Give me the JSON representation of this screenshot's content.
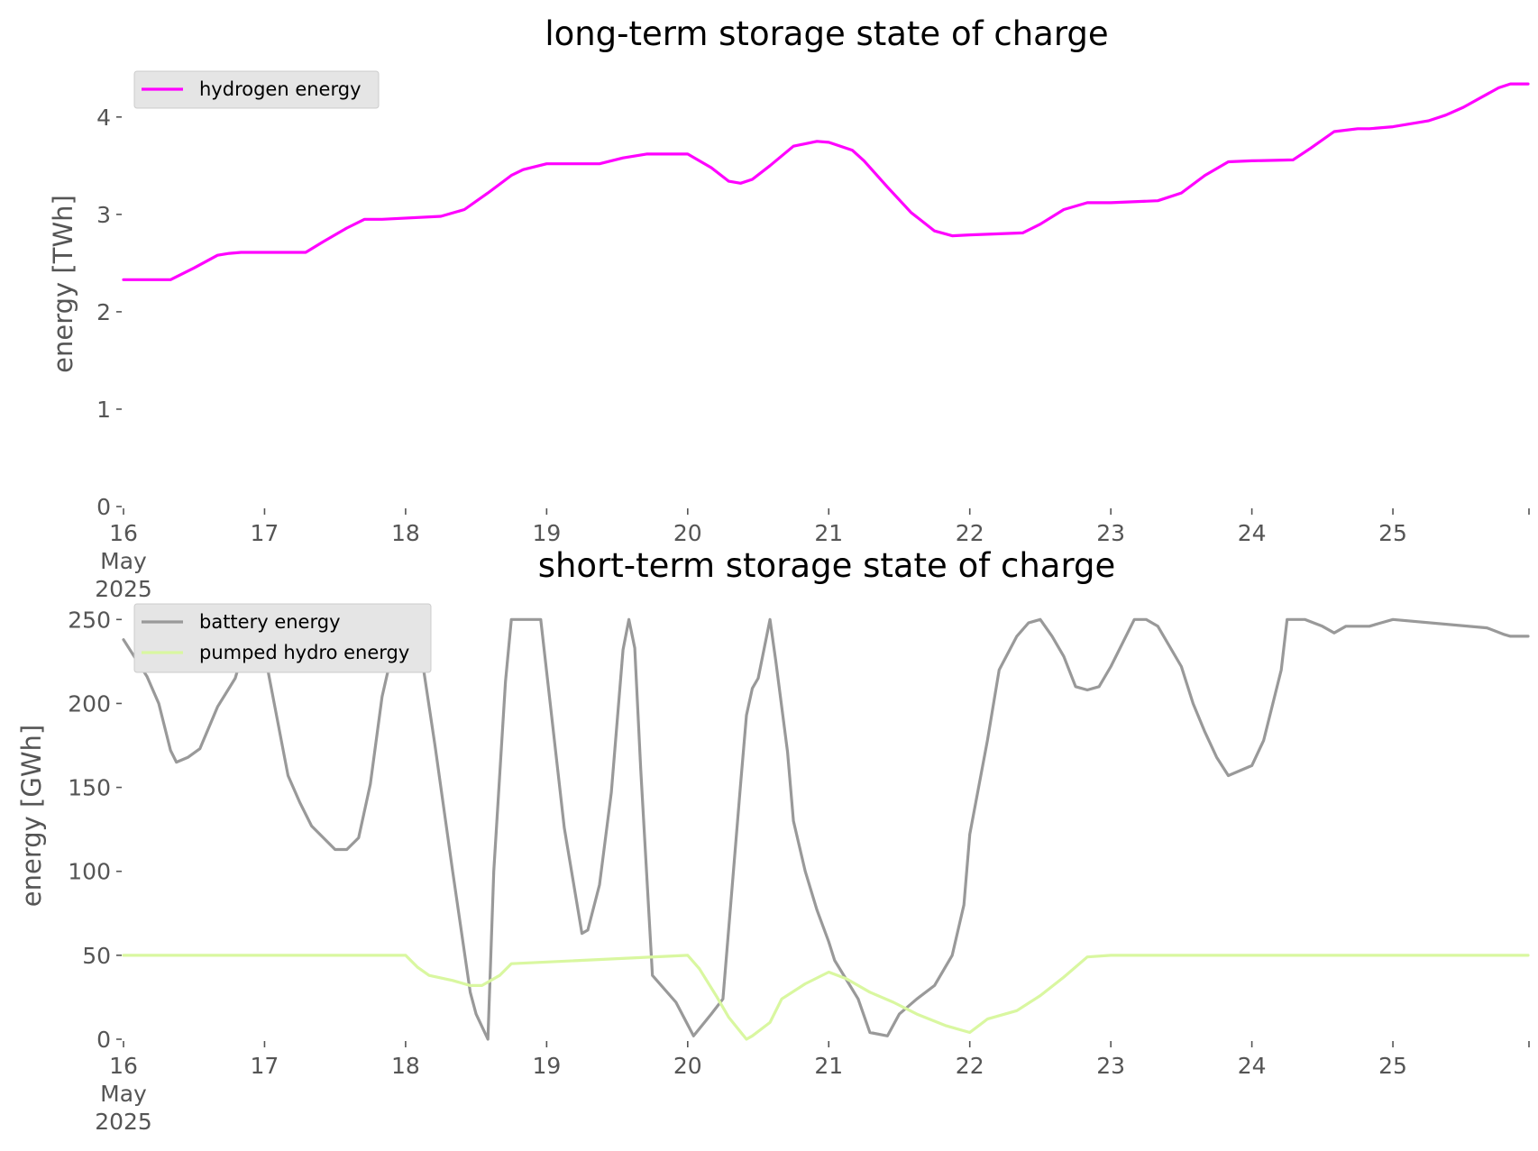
{
  "colors": {
    "hydrogen": "#ff00ff",
    "battery": "#999999",
    "pumped_hydro": "#d9f7a0",
    "axis_text": "#555555"
  },
  "chart_data": [
    {
      "type": "line",
      "title": "long-term storage state of charge",
      "xlabel": "",
      "ylabel": "energy [TWh]",
      "ylim": [
        0,
        4.35
      ],
      "xlim": [
        "2025-05-16 00:00",
        "2025-05-25 23:00"
      ],
      "x_ticks": [
        "16\nMay\n2025",
        "17",
        "18",
        "19",
        "20",
        "21",
        "22",
        "23",
        "24",
        "25"
      ],
      "y_ticks": [
        "0",
        "1",
        "2",
        "3",
        "4"
      ],
      "grid": false,
      "legend": "upper-left",
      "series": [
        {
          "name": "hydrogen energy",
          "color": "#ff00ff",
          "x": [
            "2025-05-16 00:00",
            "2025-05-16 08:00",
            "2025-05-16 12:00",
            "2025-05-16 16:00",
            "2025-05-16 18:00",
            "2025-05-16 20:00",
            "2025-05-17 07:00",
            "2025-05-17 10:00",
            "2025-05-17 14:00",
            "2025-05-17 17:00",
            "2025-05-17 20:00",
            "2025-05-18 06:00",
            "2025-05-18 10:00",
            "2025-05-18 14:00",
            "2025-05-18 18:00",
            "2025-05-18 20:00",
            "2025-05-19 00:00",
            "2025-05-19 09:00",
            "2025-05-19 13:00",
            "2025-05-19 17:00",
            "2025-05-20 00:00",
            "2025-05-20 04:00",
            "2025-05-20 07:00",
            "2025-05-20 09:00",
            "2025-05-20 11:00",
            "2025-05-20 14:00",
            "2025-05-20 18:00",
            "2025-05-20 22:00",
            "2025-05-21 00:00",
            "2025-05-21 04:00",
            "2025-05-21 06:00",
            "2025-05-21 10:00",
            "2025-05-21 14:00",
            "2025-05-21 18:00",
            "2025-05-21 21:00",
            "2025-05-22 00:00",
            "2025-05-22 09:00",
            "2025-05-22 12:00",
            "2025-05-22 16:00",
            "2025-05-22 20:00",
            "2025-05-23 00:00",
            "2025-05-23 08:00",
            "2025-05-23 12:00",
            "2025-05-23 16:00",
            "2025-05-23 20:00",
            "2025-05-24 00:00",
            "2025-05-24 07:00",
            "2025-05-24 10:00",
            "2025-05-24 14:00",
            "2025-05-24 18:00",
            "2025-05-24 20:00",
            "2025-05-25 00:00",
            "2025-05-25 06:00",
            "2025-05-25 09:00",
            "2025-05-25 12:00",
            "2025-05-25 15:00",
            "2025-05-25 18:00",
            "2025-05-25 20:00",
            "2025-05-25 23:00"
          ],
          "y": [
            2.33,
            2.33,
            2.45,
            2.58,
            2.6,
            2.61,
            2.61,
            2.72,
            2.86,
            2.95,
            2.95,
            2.98,
            3.05,
            3.22,
            3.4,
            3.46,
            3.52,
            3.52,
            3.58,
            3.62,
            3.62,
            3.48,
            3.34,
            3.32,
            3.36,
            3.5,
            3.7,
            3.75,
            3.74,
            3.66,
            3.55,
            3.28,
            3.02,
            2.83,
            2.78,
            2.79,
            2.81,
            2.9,
            3.05,
            3.12,
            3.12,
            3.14,
            3.22,
            3.4,
            3.54,
            3.55,
            3.56,
            3.68,
            3.85,
            3.88,
            3.88,
            3.9,
            3.96,
            4.02,
            4.1,
            4.2,
            4.3,
            4.34,
            4.34
          ]
        }
      ]
    },
    {
      "type": "line",
      "title": "short-term storage state of charge",
      "xlabel": "",
      "ylabel": "energy [GWh]",
      "ylim": [
        0,
        255
      ],
      "xlim": [
        "2025-05-16 00:00",
        "2025-05-25 23:00"
      ],
      "x_ticks": [
        "16\nMay\n2025",
        "17",
        "18",
        "19",
        "20",
        "21",
        "22",
        "23",
        "24",
        "25"
      ],
      "y_ticks": [
        "0",
        "50",
        "100",
        "150",
        "200",
        "250"
      ],
      "grid": false,
      "legend": "upper-left",
      "series": [
        {
          "name": "battery energy",
          "color": "#999999",
          "x": [
            "2025-05-16 00:00",
            "2025-05-16 04:00",
            "2025-05-16 06:00",
            "2025-05-16 08:00",
            "2025-05-16 09:00",
            "2025-05-16 11:00",
            "2025-05-16 13:00",
            "2025-05-16 16:00",
            "2025-05-16 19:00",
            "2025-05-16 22:00",
            "2025-05-17 00:00",
            "2025-05-17 04:00",
            "2025-05-17 06:00",
            "2025-05-17 08:00",
            "2025-05-17 12:00",
            "2025-05-17 14:00",
            "2025-05-17 16:00",
            "2025-05-17 18:00",
            "2025-05-17 20:00",
            "2025-05-17 23:00",
            "2025-05-18 02:00",
            "2025-05-18 05:00",
            "2025-05-18 08:00",
            "2025-05-18 10:00",
            "2025-05-18 11:00",
            "2025-05-18 12:00",
            "2025-05-18 14:00",
            "2025-05-18 15:00",
            "2025-05-18 17:00",
            "2025-05-18 18:00",
            "2025-05-18 23:00",
            "2025-05-19 03:00",
            "2025-05-19 06:00",
            "2025-05-19 07:00",
            "2025-05-19 09:00",
            "2025-05-19 11:00",
            "2025-05-19 13:00",
            "2025-05-19 14:00",
            "2025-05-19 15:00",
            "2025-05-19 16:00",
            "2025-05-19 18:00",
            "2025-05-19 22:00",
            "2025-05-20 01:00",
            "2025-05-20 04:00",
            "2025-05-20 06:00",
            "2025-05-20 09:00",
            "2025-05-20 10:00",
            "2025-05-20 11:00",
            "2025-05-20 12:00",
            "2025-05-20 14:00",
            "2025-05-20 15:00",
            "2025-05-20 17:00",
            "2025-05-20 18:00",
            "2025-05-20 20:00",
            "2025-05-20 22:00",
            "2025-05-21 00:00",
            "2025-05-21 01:00",
            "2025-05-21 05:00",
            "2025-05-21 07:00",
            "2025-05-21 10:00",
            "2025-05-21 12:00",
            "2025-05-21 15:00",
            "2025-05-21 18:00",
            "2025-05-21 21:00",
            "2025-05-21 23:00",
            "2025-05-22 00:00",
            "2025-05-22 03:00",
            "2025-05-22 05:00",
            "2025-05-22 08:00",
            "2025-05-22 10:00",
            "2025-05-22 12:00",
            "2025-05-22 14:00",
            "2025-05-22 16:00",
            "2025-05-22 18:00",
            "2025-05-22 20:00",
            "2025-05-22 22:00",
            "2025-05-23 00:00",
            "2025-05-23 04:00",
            "2025-05-23 06:00",
            "2025-05-23 08:00",
            "2025-05-23 12:00",
            "2025-05-23 14:00",
            "2025-05-23 16:00",
            "2025-05-23 18:00",
            "2025-05-23 20:00",
            "2025-05-24 00:00",
            "2025-05-24 02:00",
            "2025-05-24 05:00",
            "2025-05-24 06:00",
            "2025-05-24 09:00",
            "2025-05-24 12:00",
            "2025-05-24 14:00",
            "2025-05-24 16:00",
            "2025-05-24 18:00",
            "2025-05-24 20:00",
            "2025-05-24 22:00",
            "2025-05-25 00:00",
            "2025-05-25 16:00",
            "2025-05-25 19:00",
            "2025-05-25 20:00",
            "2025-05-25 22:00",
            "2025-05-25 23:00"
          ],
          "y": [
            238,
            216,
            200,
            172,
            165,
            168,
            173,
            198,
            215,
            250,
            230,
            157,
            141,
            127,
            113,
            113,
            120,
            152,
            204,
            250,
            245,
            175,
            100,
            52,
            28,
            15,
            0,
            100,
            213,
            250,
            250,
            126,
            63,
            65,
            92,
            147,
            232,
            250,
            233,
            161,
            38,
            22,
            2,
            15,
            24,
            152,
            193,
            209,
            215,
            250,
            225,
            171,
            130,
            100,
            77,
            58,
            47,
            24,
            4,
            2,
            15,
            24,
            32,
            50,
            80,
            122,
            178,
            220,
            240,
            248,
            250,
            240,
            228,
            210,
            208,
            210,
            222,
            250,
            250,
            246,
            222,
            200,
            183,
            168,
            157,
            163,
            178,
            220,
            250,
            250,
            246,
            242,
            246,
            246,
            246,
            248,
            250,
            245,
            241,
            240,
            240,
            240
          ],
          "x_ref_note": ""
        },
        {
          "name": "pumped hydro energy",
          "color": "#d9f7a0",
          "x": [
            "2025-05-16 00:00",
            "2025-05-18 00:00",
            "2025-05-18 02:00",
            "2025-05-18 04:00",
            "2025-05-18 08:00",
            "2025-05-18 11:00",
            "2025-05-18 13:00",
            "2025-05-18 16:00",
            "2025-05-18 18:00",
            "2025-05-20 00:00",
            "2025-05-20 02:00",
            "2025-05-20 05:00",
            "2025-05-20 07:00",
            "2025-05-20 10:00",
            "2025-05-20 11:00",
            "2025-05-20 14:00",
            "2025-05-20 16:00",
            "2025-05-20 20:00",
            "2025-05-21 00:00",
            "2025-05-21 03:00",
            "2025-05-21 07:00",
            "2025-05-21 11:00",
            "2025-05-21 15:00",
            "2025-05-21 20:00",
            "2025-05-22 00:00",
            "2025-05-22 03:00",
            "2025-05-22 08:00",
            "2025-05-22 12:00",
            "2025-05-22 16:00",
            "2025-05-22 20:00",
            "2025-05-23 00:00",
            "2025-05-25 23:00"
          ],
          "y": [
            50,
            50,
            43,
            38,
            35,
            32,
            32,
            38,
            45,
            50,
            42,
            25,
            13,
            0,
            2,
            10,
            24,
            33,
            40,
            36,
            28,
            22,
            15,
            8,
            4,
            12,
            17,
            26,
            37,
            49,
            50,
            50
          ]
        }
      ]
    }
  ]
}
